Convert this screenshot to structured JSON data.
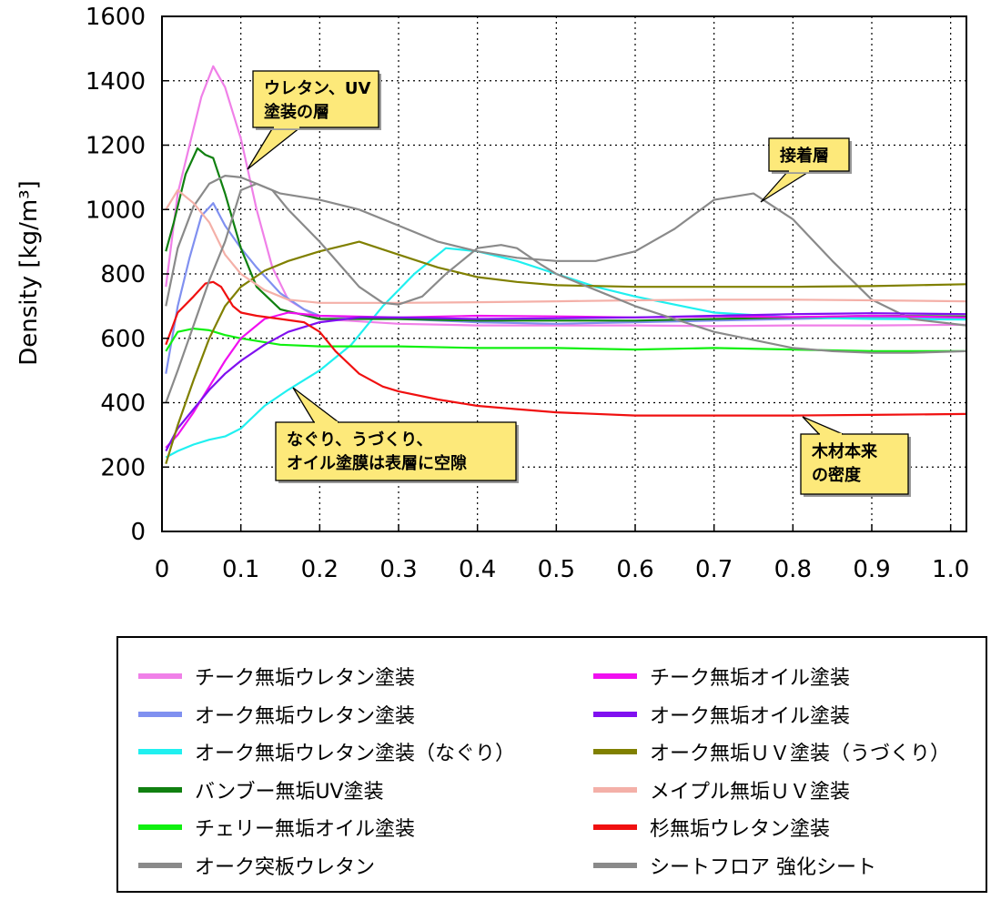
{
  "chart_data": {
    "type": "line",
    "xlabel": "",
    "ylabel": "Density [kg/m³]",
    "xlim": [
      0,
      1.02
    ],
    "ylim": [
      0,
      1600
    ],
    "xticks": [
      "0",
      "0.1",
      "0.2",
      "0.3",
      "0.4",
      "0.5",
      "0.6",
      "0.7",
      "0.8",
      "0.9",
      "1.0"
    ],
    "yticks": [
      "0",
      "200",
      "400",
      "600",
      "800",
      "1000",
      "1200",
      "1400",
      "1600"
    ],
    "grid": true,
    "legend_position": "bottom",
    "annotations": [
      {
        "lines": [
          "ウレタン、UV",
          "塗装の層"
        ],
        "x": 0.11,
        "y": 1130
      },
      {
        "lines": [
          "接着層"
        ],
        "x": 0.755,
        "y": 1020
      },
      {
        "lines": [
          "なぐり、うづくり、",
          "オイル塗膜は表層に空隙"
        ],
        "x": 0.16,
        "y": 640
      },
      {
        "lines": [
          "木材本来",
          "の密度"
        ],
        "x": 0.81,
        "y": 365
      }
    ],
    "series": [
      {
        "name": "チーク無垢ウレタン塗装",
        "color": "#f080e8",
        "x": [
          0.005,
          0.02,
          0.035,
          0.05,
          0.065,
          0.08,
          0.1,
          0.12,
          0.14,
          0.16,
          0.2,
          0.3,
          0.4,
          0.5,
          0.6,
          0.7,
          0.8,
          0.9,
          1.02
        ],
        "y": [
          760,
          1050,
          1200,
          1350,
          1445,
          1380,
          1220,
          1000,
          820,
          720,
          660,
          645,
          640,
          640,
          640,
          638,
          640,
          640,
          642
        ]
      },
      {
        "name": "オーク無垢ウレタン塗装",
        "color": "#8090f0",
        "x": [
          0.005,
          0.02,
          0.035,
          0.05,
          0.065,
          0.08,
          0.1,
          0.12,
          0.15,
          0.18,
          0.2,
          0.3,
          0.4,
          0.5,
          0.6,
          0.7,
          0.8,
          0.9,
          1.02
        ],
        "y": [
          490,
          700,
          850,
          980,
          1020,
          950,
          880,
          820,
          740,
          690,
          670,
          660,
          650,
          645,
          650,
          655,
          660,
          665,
          660
        ]
      },
      {
        "name": "オーク無垢ウレタン塗装（なぐり）",
        "color": "#20f0f0",
        "x": [
          0.005,
          0.02,
          0.04,
          0.06,
          0.08,
          0.1,
          0.13,
          0.16,
          0.2,
          0.24,
          0.28,
          0.32,
          0.36,
          0.4,
          0.45,
          0.5,
          0.55,
          0.6,
          0.7,
          0.8,
          0.9,
          1.02
        ],
        "y": [
          230,
          250,
          270,
          285,
          295,
          320,
          390,
          440,
          500,
          580,
          700,
          800,
          880,
          870,
          840,
          800,
          760,
          730,
          680,
          665,
          660,
          658
        ]
      },
      {
        "name": "バンブー無垢UV塗装",
        "color": "#108010",
        "x": [
          0.005,
          0.015,
          0.03,
          0.045,
          0.055,
          0.065,
          0.08,
          0.1,
          0.12,
          0.15,
          0.2,
          0.3,
          0.4,
          0.5,
          0.6,
          0.7,
          0.8,
          0.9,
          1.02
        ],
        "y": [
          870,
          960,
          1110,
          1190,
          1170,
          1160,
          1050,
          880,
          760,
          690,
          660,
          660,
          655,
          655,
          655,
          660,
          665,
          670,
          668
        ]
      },
      {
        "name": "チェリー無垢オイル塗装",
        "color": "#10f010",
        "x": [
          0.005,
          0.02,
          0.04,
          0.06,
          0.08,
          0.1,
          0.15,
          0.2,
          0.3,
          0.4,
          0.5,
          0.6,
          0.7,
          0.8,
          0.9,
          1.02
        ],
        "y": [
          560,
          620,
          630,
          625,
          610,
          600,
          580,
          575,
          575,
          570,
          570,
          565,
          570,
          565,
          560,
          560
        ]
      },
      {
        "name": "オーク突板ウレタン",
        "color": "#8a8a8a",
        "x": [
          0.005,
          0.02,
          0.04,
          0.06,
          0.08,
          0.1,
          0.12,
          0.15,
          0.2,
          0.25,
          0.3,
          0.35,
          0.4,
          0.45,
          0.5,
          0.55,
          0.6,
          0.65,
          0.7,
          0.75,
          0.8,
          0.85,
          0.9,
          0.95,
          1.02
        ],
        "y": [
          700,
          880,
          1010,
          1080,
          1105,
          1100,
          1080,
          1050,
          1030,
          1000,
          950,
          900,
          870,
          850,
          840,
          840,
          870,
          940,
          1030,
          1050,
          970,
          840,
          720,
          660,
          640
        ]
      },
      {
        "name": "チーク無垢オイル塗装",
        "color": "#f010f0",
        "x": [
          0.005,
          0.02,
          0.04,
          0.06,
          0.08,
          0.1,
          0.13,
          0.16,
          0.2,
          0.3,
          0.4,
          0.5,
          0.6,
          0.7,
          0.8,
          0.9,
          1.02
        ],
        "y": [
          260,
          300,
          370,
          450,
          530,
          600,
          660,
          680,
          670,
          665,
          670,
          668,
          665,
          668,
          666,
          670,
          665
        ]
      },
      {
        "name": "オーク無垢オイル塗装",
        "color": "#8010f0",
        "x": [
          0.005,
          0.02,
          0.04,
          0.06,
          0.08,
          0.1,
          0.13,
          0.16,
          0.2,
          0.25,
          0.3,
          0.4,
          0.5,
          0.6,
          0.7,
          0.8,
          0.9,
          1.02
        ],
        "y": [
          250,
          320,
          380,
          440,
          490,
          530,
          580,
          620,
          650,
          665,
          665,
          660,
          662,
          665,
          670,
          675,
          678,
          675
        ]
      },
      {
        "name": "オーク無垢ＵＶ塗装（うづくり）",
        "color": "#808000",
        "x": [
          0.005,
          0.02,
          0.04,
          0.06,
          0.08,
          0.1,
          0.13,
          0.16,
          0.2,
          0.25,
          0.3,
          0.35,
          0.4,
          0.45,
          0.5,
          0.6,
          0.7,
          0.8,
          0.9,
          1.02
        ],
        "y": [
          210,
          330,
          470,
          600,
          700,
          760,
          810,
          840,
          870,
          900,
          860,
          820,
          790,
          775,
          765,
          760,
          760,
          760,
          762,
          768
        ]
      },
      {
        "name": "メイプル無垢ＵＶ塗装",
        "color": "#f4b0a8",
        "x": [
          0.005,
          0.02,
          0.04,
          0.06,
          0.08,
          0.1,
          0.13,
          0.16,
          0.2,
          0.3,
          0.4,
          0.5,
          0.6,
          0.7,
          0.8,
          0.9,
          1.02
        ],
        "y": [
          1000,
          1060,
          1020,
          960,
          860,
          800,
          750,
          720,
          710,
          710,
          712,
          715,
          718,
          720,
          720,
          718,
          715
        ]
      },
      {
        "name": "杉無垢ウレタン塗装",
        "color": "#f01010",
        "x": [
          0.005,
          0.02,
          0.04,
          0.055,
          0.065,
          0.075,
          0.09,
          0.1,
          0.12,
          0.15,
          0.18,
          0.2,
          0.22,
          0.25,
          0.28,
          0.3,
          0.35,
          0.4,
          0.45,
          0.5,
          0.6,
          0.7,
          0.8,
          0.9,
          1.02
        ],
        "y": [
          580,
          680,
          730,
          770,
          775,
          760,
          700,
          680,
          670,
          660,
          650,
          620,
          560,
          490,
          450,
          435,
          410,
          390,
          380,
          370,
          360,
          360,
          360,
          362,
          365
        ]
      },
      {
        "name": "シートフロア 強化シート",
        "color": "#8a8a8a",
        "x": [
          0.005,
          0.02,
          0.04,
          0.06,
          0.08,
          0.1,
          0.12,
          0.14,
          0.16,
          0.2,
          0.25,
          0.28,
          0.3,
          0.33,
          0.36,
          0.4,
          0.43,
          0.45,
          0.48,
          0.5,
          0.55,
          0.6,
          0.7,
          0.8,
          0.85,
          0.9,
          0.95,
          1.02
        ],
        "y": [
          400,
          500,
          640,
          780,
          900,
          1060,
          1080,
          1060,
          1000,
          900,
          760,
          710,
          705,
          730,
          800,
          880,
          890,
          880,
          830,
          800,
          750,
          700,
          620,
          570,
          560,
          555,
          555,
          560
        ]
      }
    ]
  }
}
